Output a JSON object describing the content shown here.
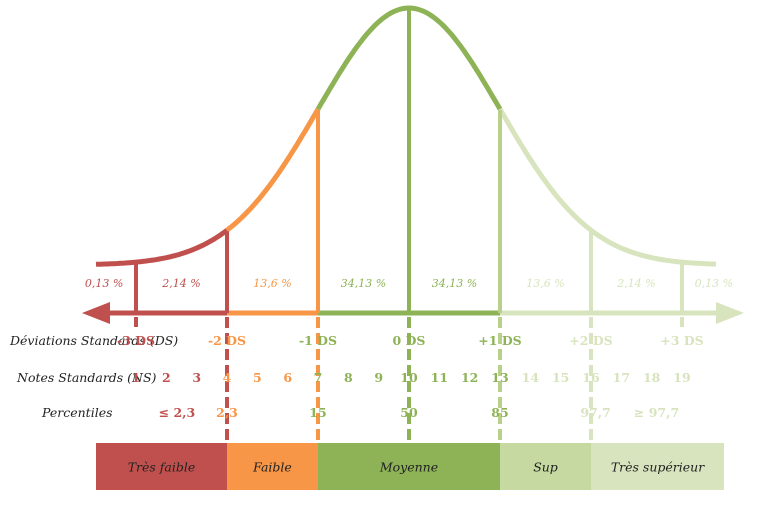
{
  "colors": {
    "red": "#c0504d",
    "orange": "#f79646",
    "green": "#8db356",
    "lightgreen": "#d7e4bd",
    "palegreen": "#b8d08a",
    "text": "#222222"
  },
  "chart_data": {
    "type": "area",
    "title": "",
    "curve": "normal distribution",
    "xlim": [
      -3.75,
      3.75
    ],
    "percent_labels": [
      {
        "text": "0,13 %",
        "x": -3.35
      },
      {
        "text": "2,14 %",
        "x": -2.5
      },
      {
        "text": "13,6 %",
        "x": -1.5
      },
      {
        "text": "34,13 %",
        "x": -0.5
      },
      {
        "text": "34,13 %",
        "x": 0.5
      },
      {
        "text": "13,6 %",
        "x": 1.5
      },
      {
        "text": "2,14 %",
        "x": 2.5
      },
      {
        "text": "0,13 %",
        "x": 3.35
      }
    ],
    "ds_row_label": "Déviations Standards (DS)",
    "ds_labels": [
      {
        "text": "-3 DS",
        "x": -3
      },
      {
        "text": "-2 DS",
        "x": -2
      },
      {
        "text": "-1 DS",
        "x": -1
      },
      {
        "text": "0 DS",
        "x": 0
      },
      {
        "text": "+1 DS",
        "x": 1
      },
      {
        "text": "+2 DS",
        "x": 2
      },
      {
        "text": "+3 DS",
        "x": 3
      }
    ],
    "ns_row_label": "Notes Standards (NS)",
    "ns_labels": [
      "1",
      "2",
      "3",
      "4",
      "5",
      "6",
      "7",
      "8",
      "9",
      "10",
      "11",
      "12",
      "13",
      "14",
      "15",
      "16",
      "17",
      "18",
      "19"
    ],
    "percentile_row_label": "Percentiles",
    "percentile_labels": [
      {
        "text": "≤ 2,3",
        "x": -2.55
      },
      {
        "text": "2,3",
        "x": -2
      },
      {
        "text": "15",
        "x": -1
      },
      {
        "text": "50",
        "x": 0
      },
      {
        "text": "85",
        "x": 1
      },
      {
        "text": "97,7",
        "x": 2.05
      },
      {
        "text": "≥ 97,7",
        "x": 2.72
      }
    ],
    "categories": [
      {
        "label": "Très faible",
        "from": -3.75,
        "to": -2,
        "color": "#c0504d"
      },
      {
        "label": "Faible",
        "from": -2,
        "to": -1,
        "color": "#f79646"
      },
      {
        "label": "Moyenne",
        "from": -1,
        "to": 1,
        "color": "#8db356"
      },
      {
        "label": "Sup",
        "from": 1,
        "to": 2,
        "color": "#c5d9a0"
      },
      {
        "label": "Très supérieur",
        "from": 2,
        "to": 3.75,
        "color": "#d7e4bd"
      }
    ]
  }
}
